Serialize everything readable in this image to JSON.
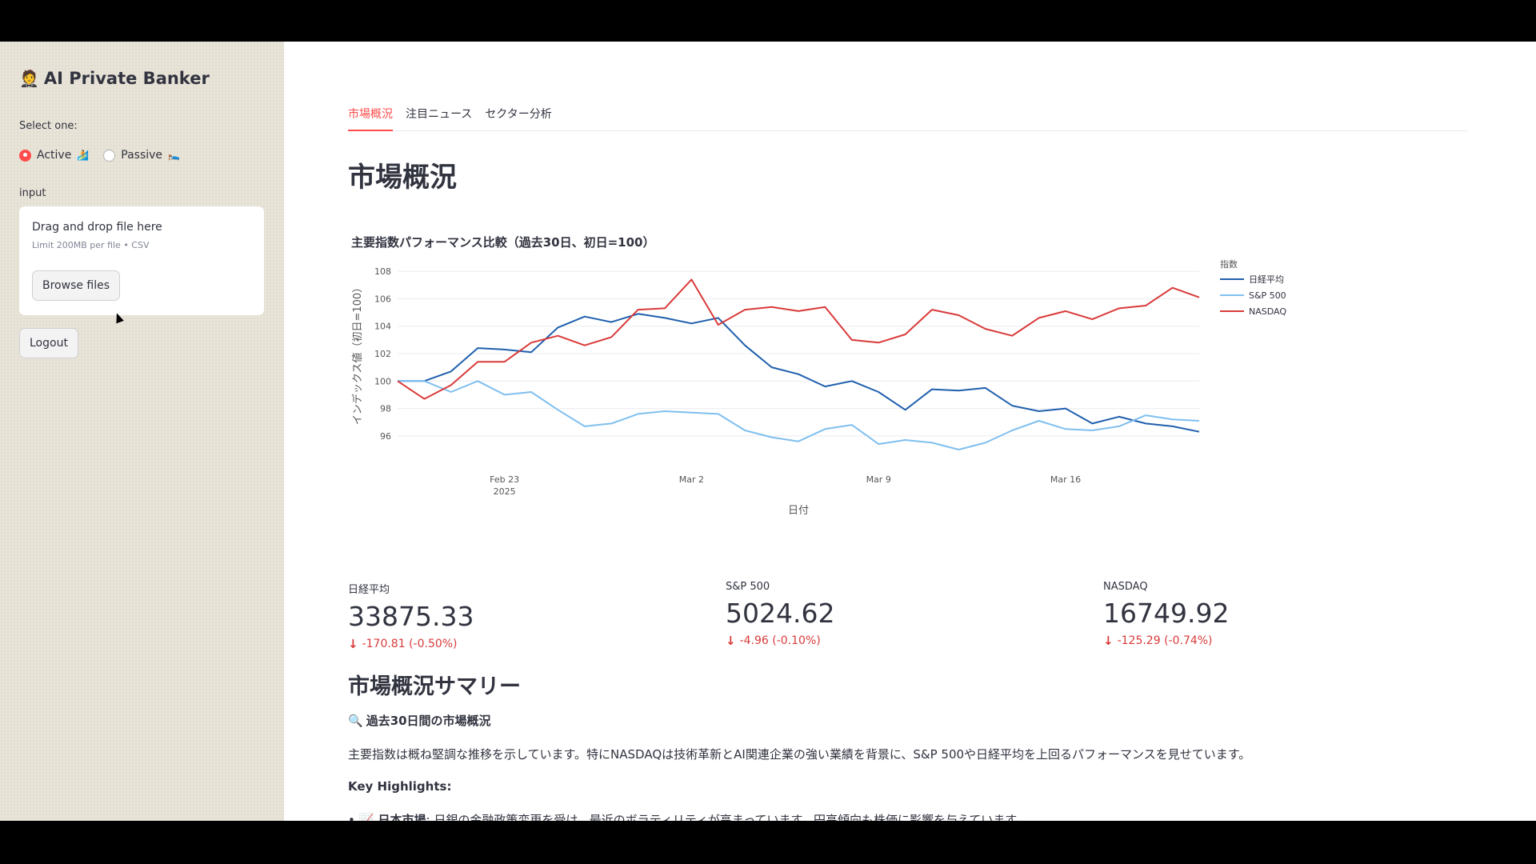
{
  "sidebar": {
    "emoji": "🤵",
    "title": "AI Private Banker",
    "select_label": "Select one:",
    "radios": [
      {
        "label": "Active",
        "icon": "🏄",
        "checked": true
      },
      {
        "label": "Passive",
        "icon": "🛌",
        "checked": false
      }
    ],
    "input_label": "input",
    "uploader": {
      "title": "Drag and drop file here",
      "subtitle": "Limit 200MB per file • CSV",
      "browse_label": "Browse files"
    },
    "logout_label": "Logout"
  },
  "tabs": [
    {
      "label": "市場概況",
      "active": true
    },
    {
      "label": "注目ニュース",
      "active": false
    },
    {
      "label": "セクター分析",
      "active": false
    }
  ],
  "page_title": "市場概況",
  "chart_data": {
    "type": "line",
    "title": "主要指数パフォーマンス比較（過去30日、初日=100）",
    "xlabel": "日付",
    "ylabel": "インデックス値（初日=100）",
    "x_ticks": [
      "Feb 23\n2025",
      "Mar 2",
      "Mar 9",
      "Mar 16"
    ],
    "y_ticks": [
      96,
      98,
      100,
      102,
      104,
      106,
      108
    ],
    "ylim": [
      95,
      109
    ],
    "legend_title": "指数",
    "legend_position": "top-right",
    "grid": true,
    "x": [
      "2025-02-19",
      "2025-02-20",
      "2025-02-21",
      "2025-02-22",
      "2025-02-23",
      "2025-02-24",
      "2025-02-25",
      "2025-02-26",
      "2025-02-27",
      "2025-02-28",
      "2025-03-01",
      "2025-03-02",
      "2025-03-03",
      "2025-03-04",
      "2025-03-05",
      "2025-03-06",
      "2025-03-07",
      "2025-03-08",
      "2025-03-09",
      "2025-03-10",
      "2025-03-11",
      "2025-03-12",
      "2025-03-13",
      "2025-03-14",
      "2025-03-15",
      "2025-03-16",
      "2025-03-17",
      "2025-03-18",
      "2025-03-19",
      "2025-03-20",
      "2025-03-21"
    ],
    "series": [
      {
        "name": "日経平均",
        "color": "#1f5fad",
        "values": [
          100,
          100,
          100.7,
          102.4,
          102.3,
          102.1,
          103.9,
          104.7,
          104.3,
          104.9,
          104.6,
          104.2,
          104.6,
          102.6,
          101.0,
          100.5,
          99.6,
          100.0,
          99.2,
          97.9,
          99.4,
          99.3,
          99.5,
          98.2,
          97.8,
          98.0,
          96.9,
          97.4,
          96.9,
          96.7,
          96.3
        ]
      },
      {
        "name": "S&P 500",
        "color": "#7fbfef",
        "values": [
          100,
          100,
          99.2,
          100.0,
          99.0,
          99.2,
          97.9,
          96.7,
          96.9,
          97.6,
          97.8,
          97.7,
          97.6,
          96.4,
          95.9,
          95.6,
          96.5,
          96.8,
          95.4,
          95.7,
          95.5,
          95.0,
          95.5,
          96.4,
          97.1,
          96.5,
          96.4,
          96.7,
          97.5,
          97.2,
          97.1
        ]
      },
      {
        "name": "NASDAQ",
        "color": "#d93a3a",
        "values": [
          100,
          98.7,
          99.7,
          101.4,
          101.4,
          102.8,
          103.3,
          102.6,
          103.2,
          105.2,
          105.3,
          107.4,
          104.1,
          105.2,
          105.4,
          105.1,
          105.4,
          103.0,
          102.8,
          103.4,
          105.2,
          104.8,
          103.8,
          103.3,
          104.6,
          105.1,
          104.5,
          105.3,
          105.5,
          106.8,
          106.1
        ]
      }
    ]
  },
  "metrics": [
    {
      "label": "日経平均",
      "value": "33875.33",
      "delta": "-170.81 (-0.50%)"
    },
    {
      "label": "S&P 500",
      "value": "5024.62",
      "delta": "-4.96 (-0.10%)"
    },
    {
      "label": "NASDAQ",
      "value": "16749.92",
      "delta": "-125.29 (-0.74%)"
    }
  ],
  "summary": {
    "title": "市場概況サマリー",
    "sub_icon": "🔍",
    "sub_heading": "過去30日間の市場概況",
    "paragraph": "主要指数は概ね堅調な推移を示しています。特にNASDAQは技術革新とAI関連企業の強い業績を背景に、S&P 500や日経平均を上回るパフォーマンスを見せています。",
    "key_highlights": "Key Highlights:",
    "bullet_bold": "📈 日本市場",
    "bullet_text": ": 日銀の金融政策変更を受け、最近のボラティリティが高まっています。円高傾向も株価に影響を与えています。"
  }
}
